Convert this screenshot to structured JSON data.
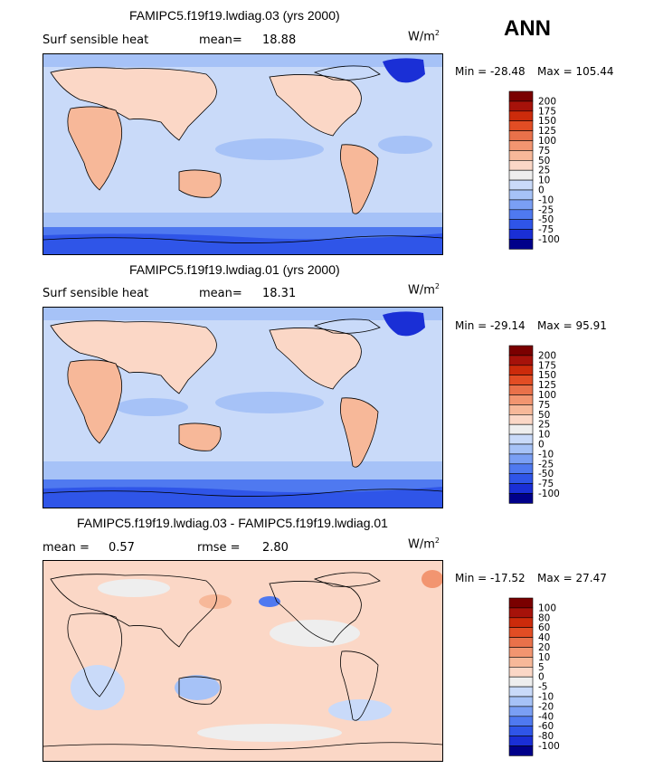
{
  "season": "ANN",
  "panels": [
    {
      "title": "FAMIPC5.f19f19.lwdiag.03 (yrs 2000)",
      "left_label": "Surf sensible heat",
      "stat_label": "mean=",
      "stat_value": "18.88",
      "stat2_label": "",
      "stat2_value": "",
      "units": "W/m",
      "units_sup": "2",
      "min_text": "Min = -28.48",
      "max_text": "Max = 105.44",
      "colorbar": [
        "-100",
        "-75",
        "-50",
        "-25",
        "-10",
        "0",
        "10",
        "25",
        "50",
        "75",
        "100",
        "125",
        "150",
        "175",
        "200"
      ]
    },
    {
      "title": "FAMIPC5.f19f19.lwdiag.01 (yrs 2000)",
      "left_label": "Surf sensible heat",
      "stat_label": "mean=",
      "stat_value": "18.31",
      "stat2_label": "",
      "stat2_value": "",
      "units": "W/m",
      "units_sup": "2",
      "min_text": "Min = -29.14",
      "max_text": "Max = 95.91",
      "colorbar": [
        "-100",
        "-75",
        "-50",
        "-25",
        "-10",
        "0",
        "10",
        "25",
        "50",
        "75",
        "100",
        "125",
        "150",
        "175",
        "200"
      ]
    },
    {
      "title": "FAMIPC5.f19f19.lwdiag.03 - FAMIPC5.f19f19.lwdiag.01",
      "left_label": "mean =",
      "stat_label": "",
      "stat_value": "0.57",
      "stat2_label": "rmse =",
      "stat2_value": "2.80",
      "units": "W/m",
      "units_sup": "2",
      "min_text": "Min = -17.52",
      "max_text": "Max = 27.47",
      "colorbar": [
        "-100",
        "-80",
        "-60",
        "-40",
        "-20",
        "-10",
        "-5",
        "0",
        "5",
        "10",
        "20",
        "40",
        "60",
        "80",
        "100"
      ]
    }
  ],
  "colors": [
    "#00008a",
    "#1a2fd6",
    "#2f55e8",
    "#4f79f0",
    "#7a9ff4",
    "#a6c2f7",
    "#c9daf9",
    "#eeeeee",
    "#fbd7c6",
    "#f7b899",
    "#f29570",
    "#e9714a",
    "#e24d24",
    "#cc2b0b",
    "#a6120a",
    "#7a0000"
  ],
  "chart_data": {
    "type": "heatmap",
    "variable": "Surf sensible heat",
    "season": "ANN",
    "units": "W/m2",
    "panels": [
      {
        "title": "FAMIPC5.f19f19.lwdiag.03 (yrs 2000)",
        "mean": 18.88,
        "min": -28.48,
        "max": 105.44,
        "levels": [
          -100,
          -75,
          -50,
          -25,
          -10,
          0,
          10,
          25,
          50,
          75,
          100,
          125,
          150,
          175,
          200
        ]
      },
      {
        "title": "FAMIPC5.f19f19.lwdiag.01 (yrs 2000)",
        "mean": 18.31,
        "min": -29.14,
        "max": 95.91,
        "levels": [
          -100,
          -75,
          -50,
          -25,
          -10,
          0,
          10,
          25,
          50,
          75,
          100,
          125,
          150,
          175,
          200
        ]
      },
      {
        "title": "FAMIPC5.f19f19.lwdiag.03 - FAMIPC5.f19f19.lwdiag.01",
        "mean": 0.57,
        "rmse": 2.8,
        "min": -17.52,
        "max": 27.47,
        "levels": [
          -100,
          -80,
          -60,
          -40,
          -20,
          -10,
          -5,
          0,
          5,
          10,
          20,
          40,
          60,
          80,
          100
        ]
      }
    ]
  }
}
